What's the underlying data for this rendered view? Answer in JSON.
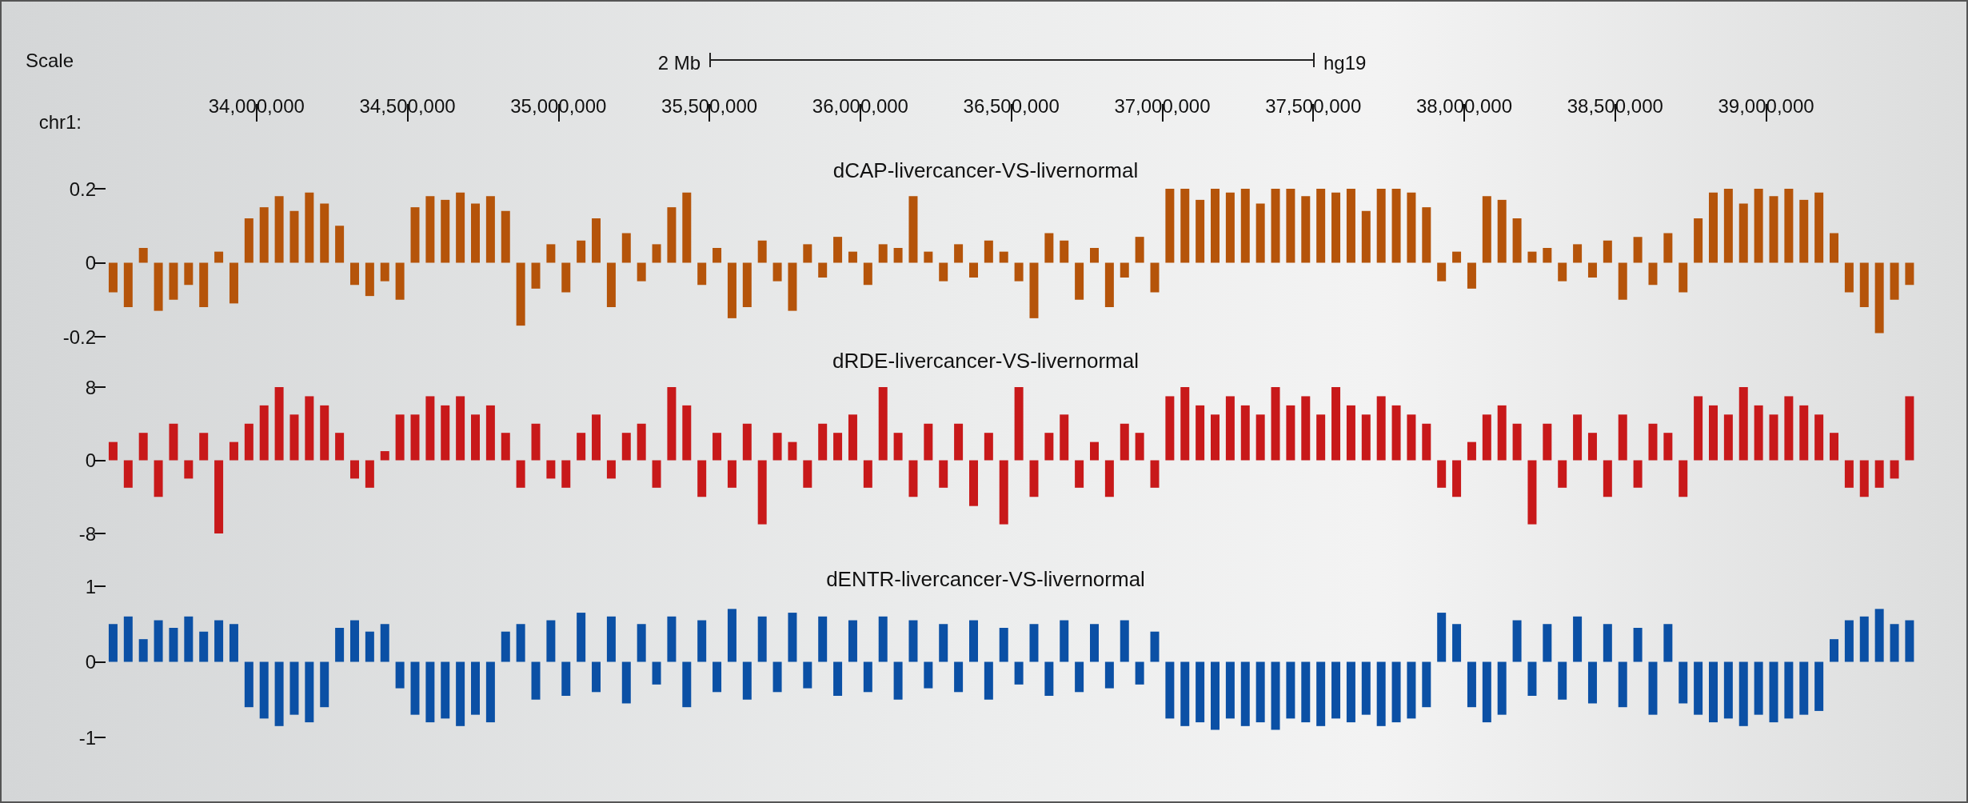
{
  "chart_data": [
    {
      "type": "bar",
      "title": "dCAP-livercancer-VS-livernormal",
      "xlabel": "chr1:",
      "color": "#b5540a",
      "annotations": [
        "Scale",
        "2 Mb",
        "hg19"
      ],
      "xlim": [
        33500000,
        39515000
      ],
      "xticks": [
        {
          "value": 34000000,
          "label": "34,000,000"
        },
        {
          "value": 34500000,
          "label": "34,500,000"
        },
        {
          "value": 35000000,
          "label": "35,000,000"
        },
        {
          "value": 35500000,
          "label": "35,500,000"
        },
        {
          "value": 36000000,
          "label": "36,000,000"
        },
        {
          "value": 36500000,
          "label": "36,500,000"
        },
        {
          "value": 37000000,
          "label": "37,000,000"
        },
        {
          "value": 37500000,
          "label": "37,500,000"
        },
        {
          "value": 38000000,
          "label": "38,000,000"
        },
        {
          "value": 38500000,
          "label": "38,500,000"
        },
        {
          "value": 39000000,
          "label": "39,000,000"
        }
      ],
      "ylim": [
        -0.2,
        0.2
      ],
      "yticks": [
        -0.2,
        0,
        0.2
      ],
      "x": [
        33525000,
        33575000,
        33625000,
        33675000,
        33725000,
        33775000,
        33825000,
        33875000,
        33925000,
        33975000,
        34025000,
        34075000,
        34125000,
        34175000,
        34225000,
        34275000,
        34325000,
        34375000,
        34425000,
        34475000,
        34525000,
        34575000,
        34625000,
        34675000,
        34725000,
        34775000,
        34825000,
        34875000,
        34925000,
        34975000,
        35025000,
        35075000,
        35125000,
        35175000,
        35225000,
        35275000,
        35325000,
        35375000,
        35425000,
        35475000,
        35525000,
        35575000,
        35625000,
        35675000,
        35725000,
        35775000,
        35825000,
        35875000,
        35925000,
        35975000,
        36025000,
        36075000,
        36125000,
        36175000,
        36225000,
        36275000,
        36325000,
        36375000,
        36425000,
        36475000,
        36525000,
        36575000,
        36625000,
        36675000,
        36725000,
        36775000,
        36825000,
        36875000,
        36925000,
        36975000,
        37025000,
        37075000,
        37125000,
        37175000,
        37225000,
        37275000,
        37325000,
        37375000,
        37425000,
        37475000,
        37525000,
        37575000,
        37625000,
        37675000,
        37725000,
        37775000,
        37825000,
        37875000,
        37925000,
        37975000,
        38025000,
        38075000,
        38125000,
        38175000,
        38225000,
        38275000,
        38325000,
        38375000,
        38425000,
        38475000,
        38525000,
        38575000,
        38625000,
        38675000,
        38725000,
        38775000,
        38825000,
        38875000,
        38925000,
        38975000,
        39025000,
        39075000,
        39125000,
        39175000,
        39225000,
        39275000,
        39325000,
        39375000,
        39425000,
        39475000
      ],
      "values": [
        -0.08,
        -0.12,
        0.04,
        -0.13,
        -0.1,
        -0.06,
        -0.12,
        0.03,
        -0.11,
        0.12,
        0.15,
        0.18,
        0.14,
        0.19,
        0.16,
        0.1,
        -0.06,
        -0.09,
        -0.05,
        -0.1,
        0.15,
        0.18,
        0.17,
        0.19,
        0.16,
        0.18,
        0.14,
        -0.17,
        -0.07,
        0.05,
        -0.08,
        0.06,
        0.12,
        -0.12,
        0.08,
        -0.05,
        0.05,
        0.15,
        0.19,
        -0.06,
        0.04,
        -0.15,
        -0.12,
        0.06,
        -0.05,
        -0.13,
        0.05,
        -0.04,
        0.07,
        0.03,
        -0.06,
        0.05,
        0.04,
        0.18,
        0.03,
        -0.05,
        0.05,
        -0.04,
        0.06,
        0.03,
        -0.05,
        -0.15,
        0.08,
        0.06,
        -0.1,
        0.04,
        -0.12,
        -0.04,
        0.07,
        -0.08,
        0.2,
        0.2,
        0.17,
        0.2,
        0.19,
        0.2,
        0.16,
        0.2,
        0.2,
        0.18,
        0.2,
        0.19,
        0.2,
        0.14,
        0.2,
        0.2,
        0.19,
        0.15,
        -0.05,
        0.03,
        -0.07,
        0.18,
        0.17,
        0.12,
        0.03,
        0.04,
        -0.05,
        0.05,
        -0.04,
        0.06,
        -0.1,
        0.07,
        -0.06,
        0.08,
        -0.08,
        0.12,
        0.19,
        0.2,
        0.16,
        0.2,
        0.18,
        0.2,
        0.17,
        0.19,
        0.08,
        -0.08,
        -0.12,
        -0.19,
        -0.1,
        -0.06
      ]
    },
    {
      "type": "bar",
      "title": "dRDE-livercancer-VS-livernormal",
      "color": "#c8191a",
      "tick_labels": "y",
      "xlim": [
        33500000,
        39515000
      ],
      "ylim": [
        -8,
        8
      ],
      "yticks": [
        -8,
        0,
        8
      ],
      "x": [
        33525000,
        33575000,
        33625000,
        33675000,
        33725000,
        33775000,
        33825000,
        33875000,
        33925000,
        33975000,
        34025000,
        34075000,
        34125000,
        34175000,
        34225000,
        34275000,
        34325000,
        34375000,
        34425000,
        34475000,
        34525000,
        34575000,
        34625000,
        34675000,
        34725000,
        34775000,
        34825000,
        34875000,
        34925000,
        34975000,
        35025000,
        35075000,
        35125000,
        35175000,
        35225000,
        35275000,
        35325000,
        35375000,
        35425000,
        35475000,
        35525000,
        35575000,
        35625000,
        35675000,
        35725000,
        35775000,
        35825000,
        35875000,
        35925000,
        35975000,
        36025000,
        36075000,
        36125000,
        36175000,
        36225000,
        36275000,
        36325000,
        36375000,
        36425000,
        36475000,
        36525000,
        36575000,
        36625000,
        36675000,
        36725000,
        36775000,
        36825000,
        36875000,
        36925000,
        36975000,
        37025000,
        37075000,
        37125000,
        37175000,
        37225000,
        37275000,
        37325000,
        37375000,
        37425000,
        37475000,
        37525000,
        37575000,
        37625000,
        37675000,
        37725000,
        37775000,
        37825000,
        37875000,
        37925000,
        37975000,
        38025000,
        38075000,
        38125000,
        38175000,
        38225000,
        38275000,
        38325000,
        38375000,
        38425000,
        38475000,
        38525000,
        38575000,
        38625000,
        38675000,
        38725000,
        38775000,
        38825000,
        38875000,
        38925000,
        38975000,
        39025000,
        39075000,
        39125000,
        39175000,
        39225000,
        39275000,
        39325000,
        39375000,
        39425000,
        39475000
      ],
      "values": [
        2,
        -3,
        3,
        -4,
        4,
        -2,
        3,
        -8,
        2,
        4,
        6,
        8,
        5,
        7,
        6,
        3,
        -2,
        -3,
        1,
        5,
        5,
        7,
        6,
        7,
        5,
        6,
        3,
        -3,
        4,
        -2,
        -3,
        3,
        5,
        -2,
        3,
        4,
        -3,
        8,
        6,
        -4,
        3,
        -3,
        4,
        -7,
        3,
        2,
        -3,
        4,
        3,
        5,
        -3,
        8,
        3,
        -4,
        4,
        -3,
        4,
        -5,
        3,
        -7,
        8,
        -4,
        3,
        5,
        -3,
        2,
        -4,
        4,
        3,
        -3,
        7,
        8,
        6,
        5,
        7,
        6,
        5,
        8,
        6,
        7,
        5,
        8,
        6,
        5,
        7,
        6,
        5,
        4,
        -3,
        -4,
        2,
        5,
        6,
        4,
        -7,
        4,
        -3,
        5,
        3,
        -4,
        5,
        -3,
        4,
        3,
        -4,
        7,
        6,
        5,
        8,
        6,
        5,
        7,
        6,
        5,
        3,
        -3,
        -4,
        -3,
        -2,
        7
      ]
    },
    {
      "type": "bar",
      "title": "dENTR-livercancer-VS-livernormal",
      "color": "#0b50a5",
      "tick_labels": "y",
      "xlim": [
        33500000,
        39515000
      ],
      "ylim": [
        -1,
        1
      ],
      "yticks": [
        -1,
        0,
        1
      ],
      "x": [
        33525000,
        33575000,
        33625000,
        33675000,
        33725000,
        33775000,
        33825000,
        33875000,
        33925000,
        33975000,
        34025000,
        34075000,
        34125000,
        34175000,
        34225000,
        34275000,
        34325000,
        34375000,
        34425000,
        34475000,
        34525000,
        34575000,
        34625000,
        34675000,
        34725000,
        34775000,
        34825000,
        34875000,
        34925000,
        34975000,
        35025000,
        35075000,
        35125000,
        35175000,
        35225000,
        35275000,
        35325000,
        35375000,
        35425000,
        35475000,
        35525000,
        35575000,
        35625000,
        35675000,
        35725000,
        35775000,
        35825000,
        35875000,
        35925000,
        35975000,
        36025000,
        36075000,
        36125000,
        36175000,
        36225000,
        36275000,
        36325000,
        36375000,
        36425000,
        36475000,
        36525000,
        36575000,
        36625000,
        36675000,
        36725000,
        36775000,
        36825000,
        36875000,
        36925000,
        36975000,
        37025000,
        37075000,
        37125000,
        37175000,
        37225000,
        37275000,
        37325000,
        37375000,
        37425000,
        37475000,
        37525000,
        37575000,
        37625000,
        37675000,
        37725000,
        37775000,
        37825000,
        37875000,
        37925000,
        37975000,
        38025000,
        38075000,
        38125000,
        38175000,
        38225000,
        38275000,
        38325000,
        38375000,
        38425000,
        38475000,
        38525000,
        38575000,
        38625000,
        38675000,
        38725000,
        38775000,
        38825000,
        38875000,
        38925000,
        38975000,
        39025000,
        39075000,
        39125000,
        39175000,
        39225000,
        39275000,
        39325000,
        39375000,
        39425000,
        39475000
      ],
      "values": [
        0.5,
        0.6,
        0.3,
        0.55,
        0.45,
        0.6,
        0.4,
        0.55,
        0.5,
        -0.6,
        -0.75,
        -0.85,
        -0.7,
        -0.8,
        -0.6,
        0.45,
        0.55,
        0.4,
        0.5,
        -0.35,
        -0.7,
        -0.8,
        -0.75,
        -0.85,
        -0.7,
        -0.8,
        0.4,
        0.5,
        -0.5,
        0.55,
        -0.45,
        0.65,
        -0.4,
        0.6,
        -0.55,
        0.5,
        -0.3,
        0.6,
        -0.6,
        0.55,
        -0.4,
        0.7,
        -0.5,
        0.6,
        -0.4,
        0.65,
        -0.35,
        0.6,
        -0.45,
        0.55,
        -0.4,
        0.6,
        -0.5,
        0.55,
        -0.35,
        0.5,
        -0.4,
        0.55,
        -0.5,
        0.45,
        -0.3,
        0.5,
        -0.45,
        0.55,
        -0.4,
        0.5,
        -0.35,
        0.55,
        -0.3,
        0.4,
        -0.75,
        -0.85,
        -0.8,
        -0.9,
        -0.75,
        -0.85,
        -0.8,
        -0.9,
        -0.75,
        -0.8,
        -0.85,
        -0.75,
        -0.8,
        -0.7,
        -0.85,
        -0.8,
        -0.75,
        -0.6,
        0.65,
        0.5,
        -0.6,
        -0.8,
        -0.7,
        0.55,
        -0.45,
        0.5,
        -0.5,
        0.6,
        -0.55,
        0.5,
        -0.6,
        0.45,
        -0.7,
        0.5,
        -0.55,
        -0.7,
        -0.8,
        -0.75,
        -0.85,
        -0.7,
        -0.8,
        -0.75,
        -0.7,
        -0.65,
        0.3,
        0.55,
        0.6,
        0.7,
        0.5,
        0.55
      ]
    }
  ]
}
